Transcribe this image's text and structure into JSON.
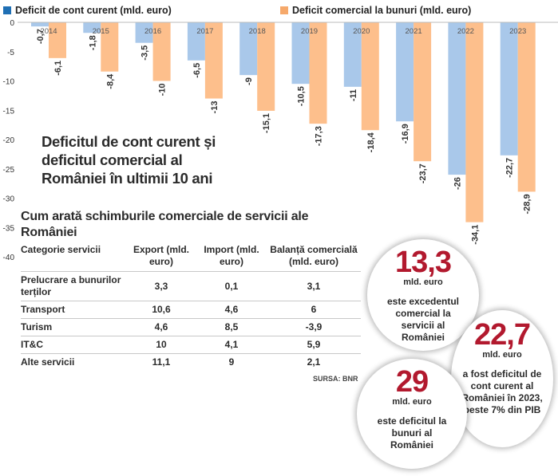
{
  "chart_data": {
    "type": "bar",
    "title": "Deficitul de cont curent și deficitul comercial al României în ultimii 10 ani",
    "categories": [
      "2014",
      "2015",
      "2016",
      "2017",
      "2018",
      "2019",
      "2020",
      "2021",
      "2022",
      "2023"
    ],
    "series": [
      {
        "name": "Deficit de cont curent (mld. euro)",
        "color": "#a9c8ea",
        "values": [
          -0.7,
          -1.8,
          -3.5,
          -6.5,
          -9,
          -10.5,
          -11,
          -16.9,
          -26,
          -22.7
        ]
      },
      {
        "name": "Deficit comercial la bunuri (mld. euro)",
        "color": "#fdbf8c",
        "values": [
          -6.1,
          -8.4,
          -10,
          -13,
          -15.1,
          -17.3,
          -18.4,
          -23.7,
          -34.1,
          -28.9
        ]
      }
    ],
    "value_labels": [
      [
        "-0,7",
        "-1,8",
        "-3,5",
        "-6,5",
        "-9",
        "-10,5",
        "-11",
        "-16,9",
        "-26",
        "-22,7"
      ],
      [
        "-6,1",
        "-8,4",
        "-10",
        "-13",
        "-15,1",
        "-17,3",
        "-18,4",
        "-23,7",
        "-34,1",
        "-28,9"
      ]
    ],
    "ylim": [
      -40,
      0
    ],
    "yticks": [
      "0",
      "-5",
      "-10",
      "-15",
      "-20",
      "-25",
      "-30",
      "-35",
      "-40"
    ],
    "legend_position": "top",
    "grid": false
  },
  "services": {
    "title": "Cum arată schimburile comerciale de servicii ale României",
    "columns": [
      "Categorie servicii",
      "Export (mld. euro)",
      "Import (mld. euro)",
      "Balanță comercială (mld. euro)"
    ],
    "rows": [
      [
        "Prelucrare a bunurilor terților",
        "3,3",
        "0,1",
        "3,1"
      ],
      [
        "Transport",
        "10,6",
        "4,6",
        "6"
      ],
      [
        "Turism",
        "4,6",
        "8,5",
        "-3,9"
      ],
      [
        "IT&C",
        "10",
        "4,1",
        "5,9"
      ],
      [
        "Alte servicii",
        "11,1",
        "9",
        "2,1"
      ]
    ],
    "source_label": "SURSA:",
    "source": "BNR"
  },
  "callouts": [
    {
      "number": "13,3",
      "unit": "mld. euro",
      "text": "este excedentul comercial la servicii al României"
    },
    {
      "number": "22,7",
      "unit": "mld. euro",
      "text": "a fost deficitul de cont curent al României în 2023, peste 7% din PIB"
    },
    {
      "number": "29",
      "unit": "mld. euro",
      "text": "este deficitul la bunuri al României"
    }
  ]
}
